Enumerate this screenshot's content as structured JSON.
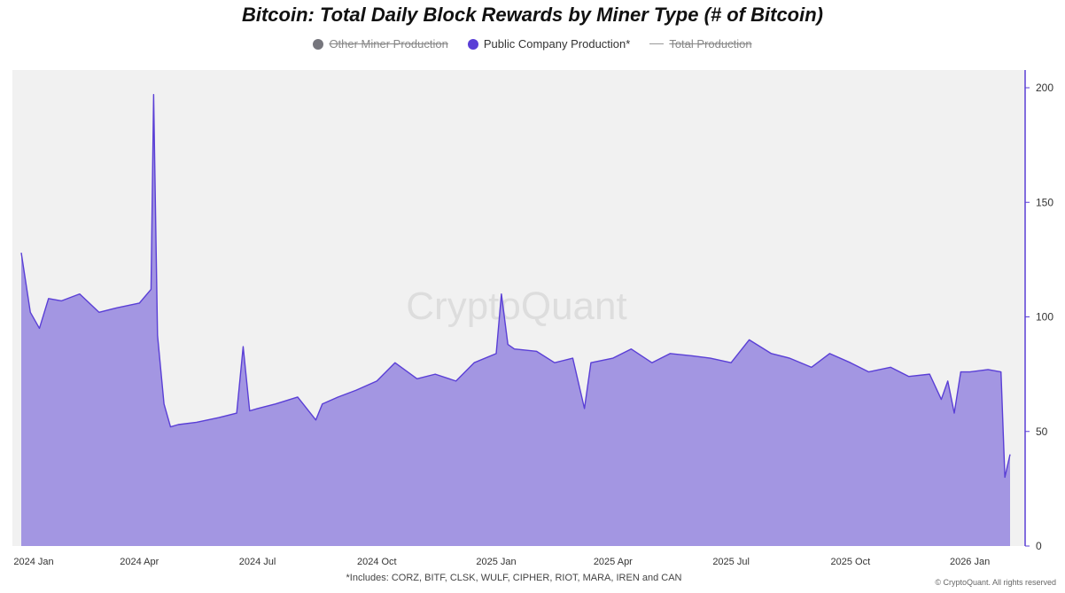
{
  "chart_data": {
    "type": "area",
    "title": "Bitcoin: Total Daily Block Rewards by Miner Type (# of Bitcoin)",
    "legend": [
      {
        "name": "Other Miner Production",
        "color": "#76767d",
        "symbol": "dot",
        "hidden": true
      },
      {
        "name": "Public Company Production*",
        "color": "#5a3fd6",
        "symbol": "dot",
        "hidden": false
      },
      {
        "name": "Total Production",
        "color": "#999999",
        "symbol": "line",
        "hidden": true
      }
    ],
    "legend_position": "top-center",
    "y_axis": {
      "position": "right",
      "ticks": [
        0,
        50,
        100,
        150,
        200
      ],
      "ylim": [
        0,
        200
      ]
    },
    "x_axis": {
      "ticks": [
        "2024 Jan",
        "2024 Apr",
        "2024 Jul",
        "2024 Oct",
        "2025 Jan",
        "2025 Apr",
        "2025 Jul",
        "2025 Oct",
        "2026 Jan"
      ]
    },
    "grid": false,
    "series": [
      {
        "name": "Public Company Production*",
        "color": "#5a3fd6",
        "fill": "#a396e2",
        "x": [
          "2024-01-01",
          "2024-01-08",
          "2024-01-15",
          "2024-01-22",
          "2024-02-01",
          "2024-02-15",
          "2024-03-01",
          "2024-03-15",
          "2024-04-01",
          "2024-04-10",
          "2024-04-12",
          "2024-04-15",
          "2024-04-20",
          "2024-04-25",
          "2024-05-01",
          "2024-05-15",
          "2024-06-01",
          "2024-06-15",
          "2024-06-20",
          "2024-06-25",
          "2024-07-01",
          "2024-07-15",
          "2024-08-01",
          "2024-08-15",
          "2024-08-20",
          "2024-09-01",
          "2024-09-15",
          "2024-10-01",
          "2024-10-15",
          "2024-11-01",
          "2024-11-15",
          "2024-12-01",
          "2024-12-15",
          "2025-01-01",
          "2025-01-05",
          "2025-01-10",
          "2025-01-15",
          "2025-02-01",
          "2025-02-15",
          "2025-03-01",
          "2025-03-10",
          "2025-03-15",
          "2025-04-01",
          "2025-04-15",
          "2025-05-01",
          "2025-05-15",
          "2025-06-01",
          "2025-06-15",
          "2025-07-01",
          "2025-07-15",
          "2025-08-01",
          "2025-08-15",
          "2025-09-01",
          "2025-09-15",
          "2025-10-01",
          "2025-10-15",
          "2025-11-01",
          "2025-11-15",
          "2025-12-01",
          "2025-12-10",
          "2025-12-15",
          "2025-12-20",
          "2025-12-25",
          "2026-01-01",
          "2026-01-15",
          "2026-01-25",
          "2026-01-28",
          "2026-02-01"
        ],
        "values": [
          128,
          102,
          95,
          108,
          107,
          110,
          102,
          104,
          106,
          112,
          197,
          92,
          62,
          52,
          53,
          54,
          56,
          58,
          87,
          59,
          60,
          62,
          65,
          55,
          62,
          65,
          68,
          72,
          80,
          73,
          75,
          72,
          80,
          84,
          110,
          88,
          86,
          85,
          80,
          82,
          60,
          80,
          82,
          86,
          80,
          84,
          83,
          82,
          80,
          90,
          84,
          82,
          78,
          84,
          80,
          76,
          78,
          74,
          75,
          64,
          72,
          58,
          76,
          76,
          77,
          76,
          30,
          40
        ]
      }
    ]
  },
  "watermark": "CryptoQuant",
  "footnote": "*Includes: CORZ, BITF, CLSK, WULF, CIPHER, RIOT, MARA, IREN and CAN",
  "copyright": "© CryptoQuant. All rights reserved"
}
